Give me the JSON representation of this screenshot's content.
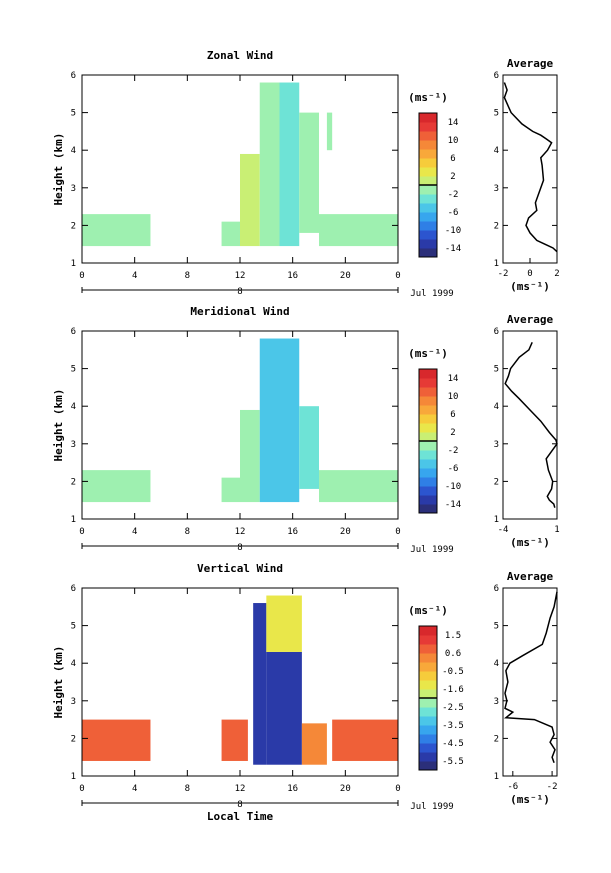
{
  "panels": [
    {
      "title": "Zonal Wind",
      "ylabel": "Height (km)",
      "units": "(ms⁻¹)",
      "date": "Jul 1999",
      "day": "8",
      "xticks": [
        "0",
        "4",
        "8",
        "12",
        "16",
        "20",
        "0"
      ],
      "yticks": [
        "1",
        "2",
        "3",
        "4",
        "5",
        "6"
      ],
      "cbar_ticks": [
        "14",
        "10",
        "6",
        "2",
        "-2",
        "-6",
        "-10",
        "-14"
      ],
      "avg_title": "Average",
      "avg_xticks": [
        "-2",
        "0",
        "2"
      ],
      "avg_yticks": [
        "1",
        "2",
        "3",
        "4",
        "5",
        "6"
      ],
      "avg_xlabel": "(ms⁻¹)"
    },
    {
      "title": "Meridional Wind",
      "ylabel": "Height (km)",
      "units": "(ms⁻¹)",
      "date": "Jul 1999",
      "day": "8",
      "xticks": [
        "0",
        "4",
        "8",
        "12",
        "16",
        "20",
        "0"
      ],
      "yticks": [
        "1",
        "2",
        "3",
        "4",
        "5",
        "6"
      ],
      "cbar_ticks": [
        "14",
        "10",
        "6",
        "2",
        "-2",
        "-6",
        "-10",
        "-14"
      ],
      "avg_title": "Average",
      "avg_xticks": [
        "-4",
        "1"
      ],
      "avg_yticks": [
        "1",
        "2",
        "3",
        "4",
        "5",
        "6"
      ],
      "avg_xlabel": "(ms⁻¹)"
    },
    {
      "title": "Vertical Wind",
      "ylabel": "Height (km)",
      "units": "(ms⁻¹)",
      "date": "Jul 1999",
      "day": "8",
      "xticks": [
        "0",
        "4",
        "8",
        "12",
        "16",
        "20",
        "0"
      ],
      "yticks": [
        "1",
        "2",
        "3",
        "4",
        "5",
        "6"
      ],
      "cbar_ticks": [
        "1.5",
        "0.6",
        "-0.5",
        "-1.6",
        "-2.5",
        "-3.5",
        "-4.5",
        "-5.5"
      ],
      "avg_title": "Average",
      "avg_xticks": [
        "-6",
        "-2"
      ],
      "avg_yticks": [
        "1",
        "2",
        "3",
        "4",
        "5",
        "6"
      ],
      "avg_xlabel": "(ms⁻¹)",
      "xlabel": "Local Time"
    }
  ],
  "chart_data": [
    {
      "type": "heatmap",
      "title": "Zonal Wind",
      "xlabel": "",
      "ylabel": "Height (km)",
      "xlim": [
        0,
        24
      ],
      "ylim": [
        1,
        6
      ],
      "colorbar": {
        "min": -16,
        "max": 16,
        "label": "(ms⁻¹)"
      },
      "cells": [
        {
          "t0": 0,
          "t1": 5.2,
          "h0": 1.45,
          "h1": 2.3,
          "v": -1
        },
        {
          "t0": 10.6,
          "t1": 12,
          "h0": 1.45,
          "h1": 2.1,
          "v": -1
        },
        {
          "t0": 12,
          "t1": 13.5,
          "h0": 1.45,
          "h1": 3.9,
          "v": 0
        },
        {
          "t0": 13.5,
          "t1": 15,
          "h0": 1.45,
          "h1": 5.8,
          "v": -2
        },
        {
          "t0": 15,
          "t1": 16.5,
          "h0": 1.45,
          "h1": 5.8,
          "v": -3
        },
        {
          "t0": 16.5,
          "t1": 18,
          "h0": 1.8,
          "h1": 5.0,
          "v": -1
        },
        {
          "t0": 18,
          "t1": 24,
          "h0": 1.45,
          "h1": 2.3,
          "v": -1
        },
        {
          "t0": 18.6,
          "t1": 19,
          "h0": 4.0,
          "h1": 5.0,
          "v": -1
        }
      ]
    },
    {
      "type": "heatmap",
      "title": "Meridional Wind",
      "xlabel": "",
      "ylabel": "Height (km)",
      "xlim": [
        0,
        24
      ],
      "ylim": [
        1,
        6
      ],
      "colorbar": {
        "min": -16,
        "max": 16,
        "label": "(ms⁻¹)"
      },
      "cells": [
        {
          "t0": 0,
          "t1": 5.2,
          "h0": 1.45,
          "h1": 2.3,
          "v": -1
        },
        {
          "t0": 10.6,
          "t1": 12,
          "h0": 1.45,
          "h1": 2.1,
          "v": -1
        },
        {
          "t0": 12,
          "t1": 13.5,
          "h0": 1.45,
          "h1": 3.9,
          "v": -2
        },
        {
          "t0": 13.5,
          "t1": 15,
          "h0": 1.45,
          "h1": 5.8,
          "v": -5
        },
        {
          "t0": 15,
          "t1": 16.5,
          "h0": 1.45,
          "h1": 5.8,
          "v": -6
        },
        {
          "t0": 16.5,
          "t1": 18,
          "h0": 1.8,
          "h1": 4.0,
          "v": -3
        },
        {
          "t0": 18,
          "t1": 24,
          "h0": 1.45,
          "h1": 2.3,
          "v": -1
        }
      ]
    },
    {
      "type": "heatmap",
      "title": "Vertical Wind",
      "xlabel": "Local Time",
      "ylabel": "Height (km)",
      "xlim": [
        0,
        24
      ],
      "ylim": [
        1,
        6
      ],
      "colorbar": {
        "min": -6,
        "max": 2,
        "label": "(ms⁻¹)"
      },
      "cells": [
        {
          "t0": 0,
          "t1": 5.2,
          "h0": 1.4,
          "h1": 2.5,
          "v": 0.8
        },
        {
          "t0": 10.6,
          "t1": 12.6,
          "h0": 1.4,
          "h1": 2.5,
          "v": 0.8
        },
        {
          "t0": 13,
          "t1": 14,
          "h0": 1.3,
          "h1": 5.6,
          "v": -5.5
        },
        {
          "t0": 14,
          "t1": 16.7,
          "h0": 1.3,
          "h1": 4.3,
          "v": -5.5
        },
        {
          "t0": 14,
          "t1": 16.7,
          "h0": 4.3,
          "h1": 5.8,
          "v": -1.5
        },
        {
          "t0": 16.7,
          "t1": 18.6,
          "h0": 1.3,
          "h1": 2.4,
          "v": 0.3
        },
        {
          "t0": 19,
          "t1": 24,
          "h0": 1.4,
          "h1": 2.5,
          "v": 0.8
        }
      ]
    },
    {
      "type": "line",
      "title": "Average",
      "xlim": [
        -2,
        2
      ],
      "ylim": [
        1,
        6
      ],
      "series": [
        {
          "x": [
            -1.9,
            -1.7,
            -1.9,
            -1.4,
            -0.6,
            0.2,
            0.8,
            1.2,
            1.6,
            1.3,
            0.8,
            0.9,
            1.0,
            0.8,
            0.4,
            0.5,
            -0.1,
            -0.3,
            0.0,
            0.5,
            1.1,
            1.7,
            2.0
          ],
          "y": [
            5.8,
            5.6,
            5.4,
            5.0,
            4.7,
            4.5,
            4.4,
            4.3,
            4.2,
            4.0,
            3.8,
            3.6,
            3.2,
            3.0,
            2.6,
            2.4,
            2.2,
            2.0,
            1.8,
            1.6,
            1.5,
            1.4,
            1.3
          ]
        }
      ]
    },
    {
      "type": "line",
      "title": "Average",
      "xlim": [
        -4,
        1
      ],
      "ylim": [
        1,
        6
      ],
      "series": [
        {
          "x": [
            -1.3,
            -1.6,
            -2.5,
            -3.3,
            -3.5,
            -3.8,
            -3.2,
            -2.5,
            -1.5,
            -0.5,
            0.3,
            0.9,
            1.0,
            0.5,
            0.0,
            0.2,
            0.6,
            0.5,
            0.1,
            0.3,
            0.7,
            0.8
          ],
          "y": [
            5.7,
            5.5,
            5.3,
            5.0,
            4.8,
            4.6,
            4.4,
            4.2,
            3.9,
            3.6,
            3.3,
            3.1,
            3.0,
            2.8,
            2.6,
            2.3,
            2.0,
            1.8,
            1.6,
            1.5,
            1.4,
            1.3
          ]
        }
      ]
    },
    {
      "type": "line",
      "title": "Average",
      "xlim": [
        -7,
        -1.5
      ],
      "ylim": [
        1,
        6
      ],
      "series": [
        {
          "x": [
            -1.5,
            -1.8,
            -2.2,
            -2.6,
            -3.0,
            -5.0,
            -6.3,
            -6.7,
            -6.5,
            -6.8,
            -6.6,
            -6.8,
            -6.0,
            -6.7,
            -3.8,
            -2.0,
            -1.8,
            -2.2,
            -1.7,
            -2.0,
            -1.8
          ],
          "y": [
            5.9,
            5.5,
            5.2,
            4.8,
            4.5,
            4.2,
            4.0,
            3.8,
            3.5,
            3.2,
            3.0,
            2.8,
            2.7,
            2.55,
            2.5,
            2.3,
            2.1,
            1.9,
            1.7,
            1.5,
            1.35
          ]
        }
      ]
    }
  ]
}
